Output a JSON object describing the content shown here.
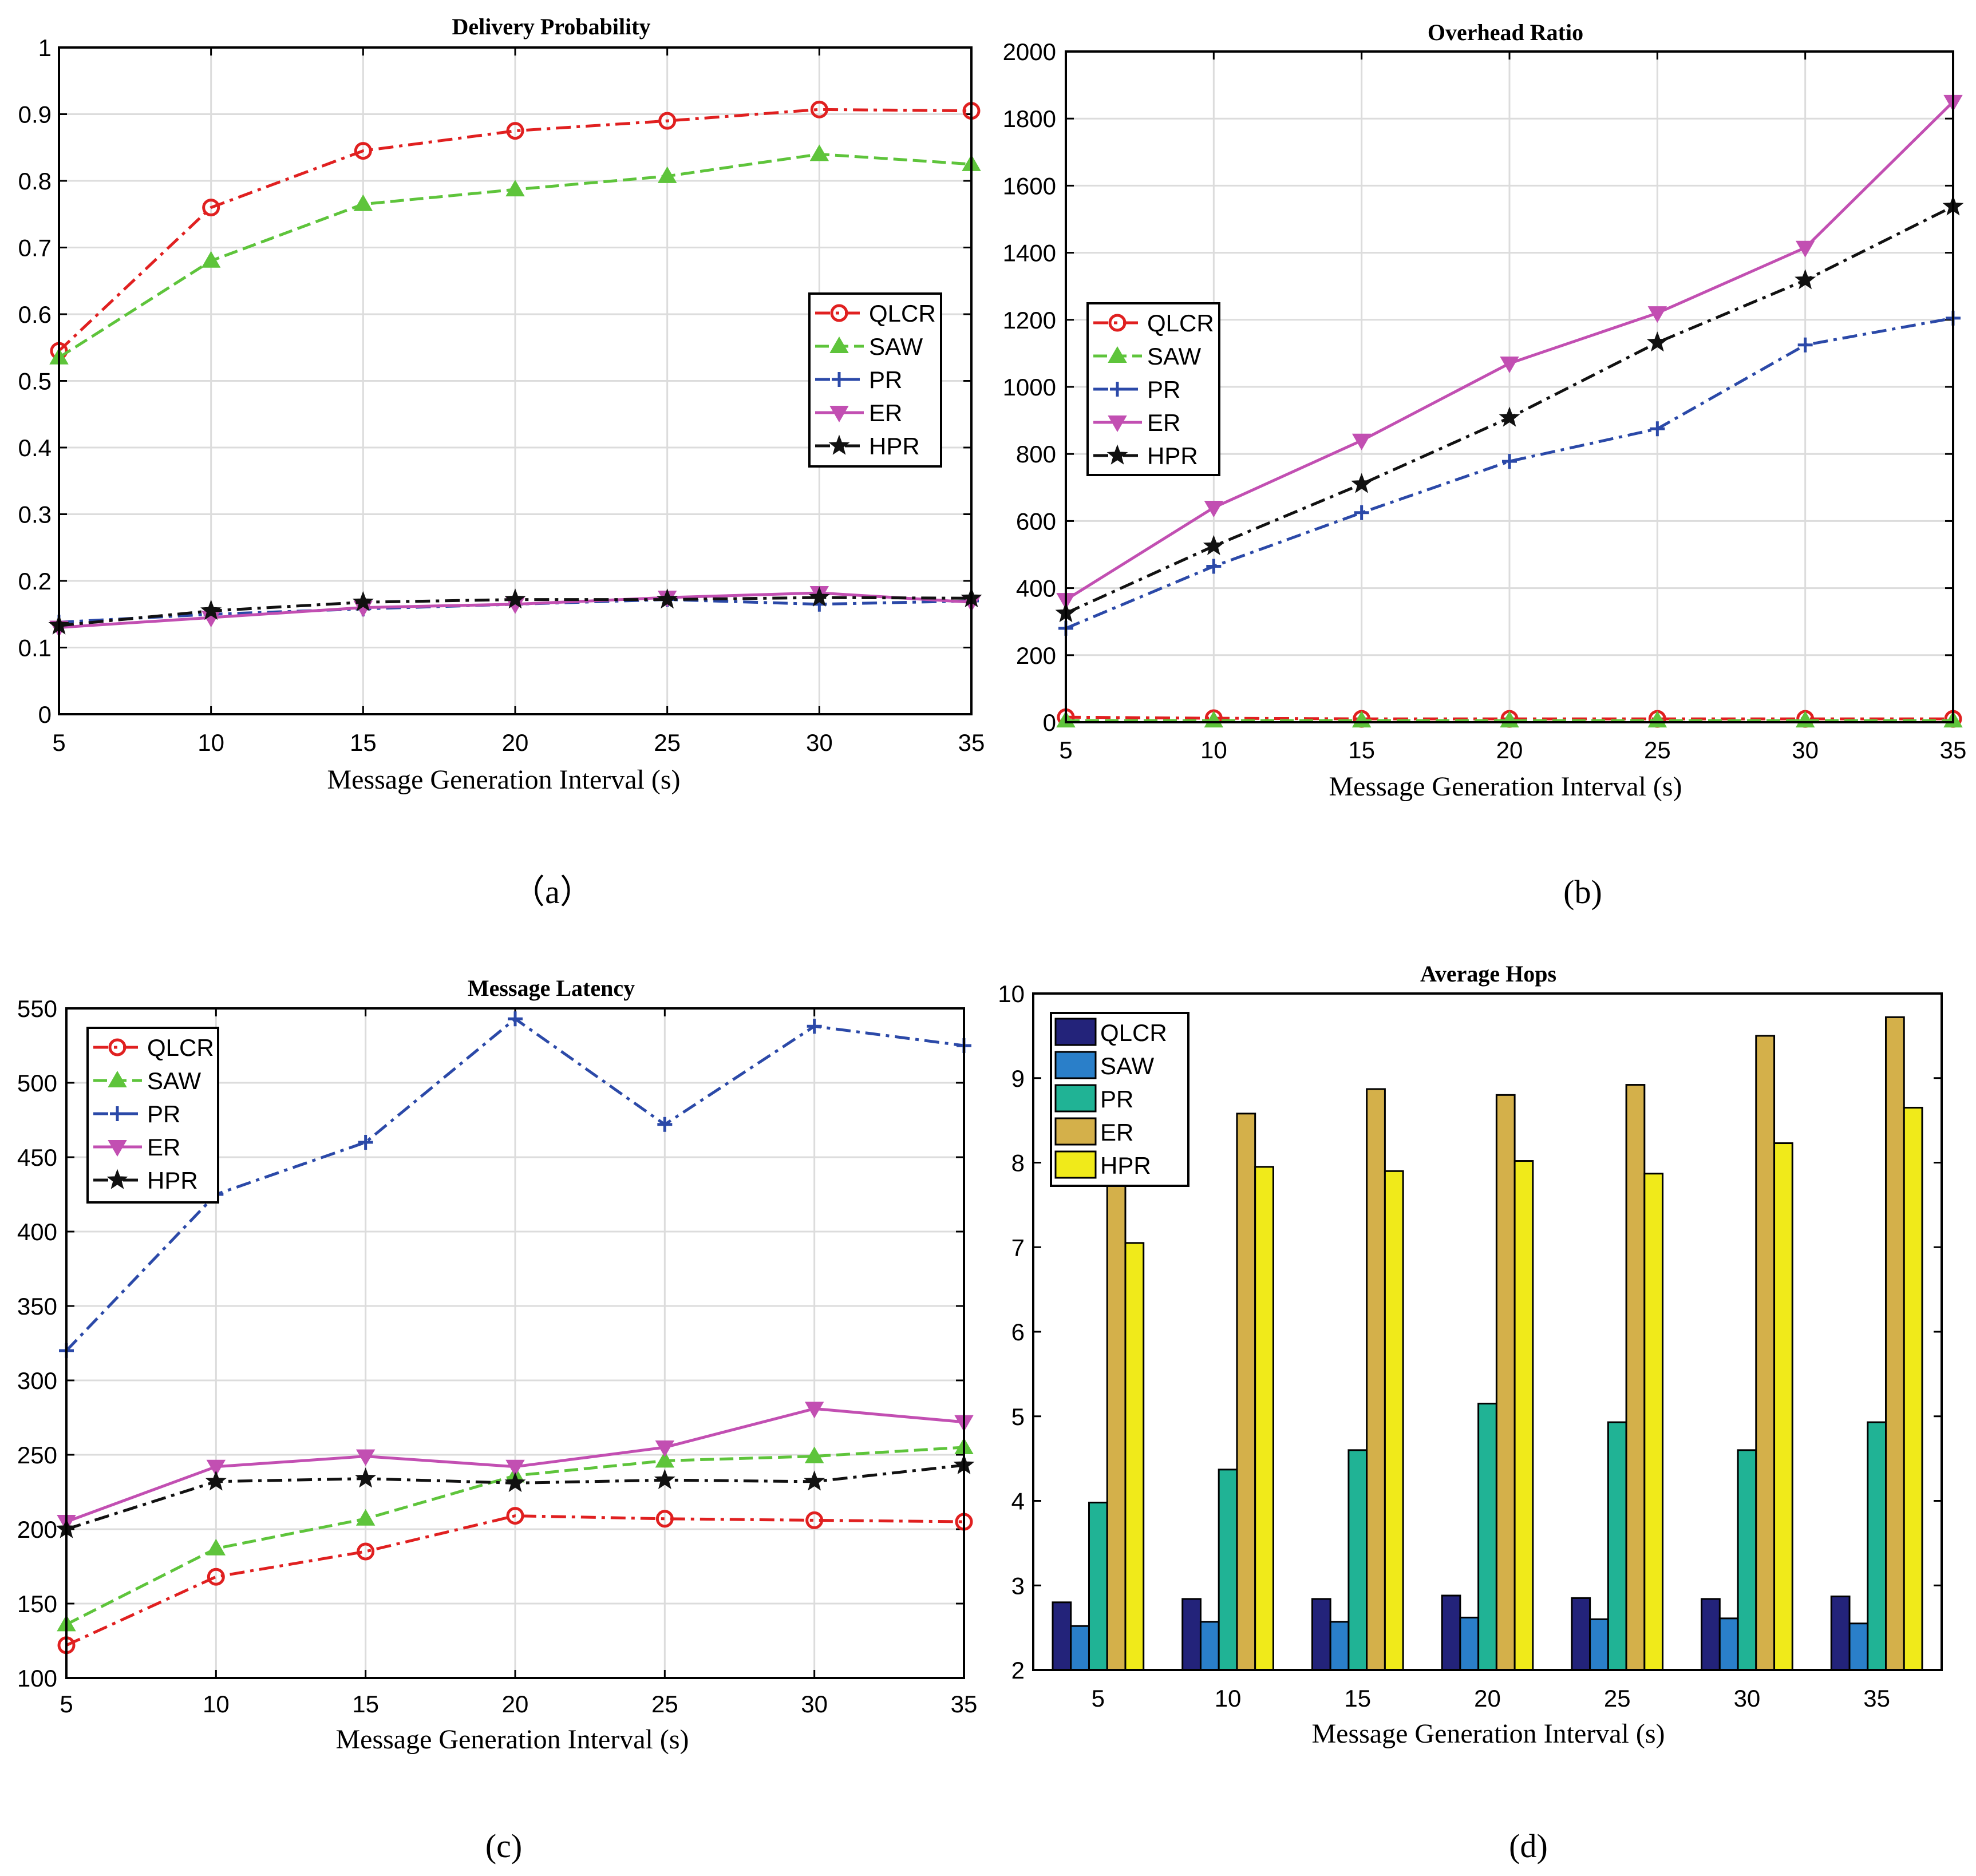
{
  "panel_labels": [
    "（a）",
    "(b)",
    "(c)",
    "(d)"
  ],
  "colors": {
    "QLCR": "#e02020",
    "SAW": "#5ec43b",
    "PR": "#2b49a8",
    "ER": "#c24fb2",
    "HPR": "#111111",
    "bar_QLCR": "#23237a",
    "bar_SAW": "#2a7fc9",
    "bar_PR": "#20b395",
    "bar_ER": "#d4b04a",
    "bar_HPR": "#f0ea1a"
  },
  "chart_data": [
    {
      "id": "a",
      "type": "line",
      "title": "Delivery Probability",
      "xlabel": "Message Generation Interval (s)",
      "ylabel": "",
      "x": [
        5,
        10,
        15,
        20,
        25,
        30,
        35
      ],
      "xticks": [
        "5",
        "10",
        "15",
        "20",
        "25",
        "30",
        "35"
      ],
      "ylim": [
        0,
        1
      ],
      "yticks": [
        "0",
        "0.1",
        "0.2",
        "0.3",
        "0.4",
        "0.5",
        "0.6",
        "0.7",
        "0.8",
        "0.9",
        "1"
      ],
      "legend_position": "right-middle",
      "series": [
        {
          "name": "QLCR",
          "values": [
            0.545,
            0.76,
            0.845,
            0.875,
            0.89,
            0.907,
            0.905
          ]
        },
        {
          "name": "SAW",
          "values": [
            0.535,
            0.68,
            0.765,
            0.787,
            0.807,
            0.84,
            0.825
          ]
        },
        {
          "name": "PR",
          "values": [
            0.138,
            0.15,
            0.158,
            0.165,
            0.172,
            0.165,
            0.17
          ]
        },
        {
          "name": "ER",
          "values": [
            0.13,
            0.145,
            0.16,
            0.165,
            0.175,
            0.182,
            0.168
          ]
        },
        {
          "name": "HPR",
          "values": [
            0.133,
            0.155,
            0.168,
            0.172,
            0.172,
            0.175,
            0.174
          ]
        }
      ]
    },
    {
      "id": "b",
      "type": "line",
      "title": "Overhead Ratio",
      "xlabel": "Message Generation Interval (s)",
      "ylabel": "",
      "x": [
        5,
        10,
        15,
        20,
        25,
        30,
        35
      ],
      "xticks": [
        "5",
        "10",
        "15",
        "20",
        "25",
        "30",
        "35"
      ],
      "ylim": [
        0,
        2000
      ],
      "yticks": [
        "0",
        "200",
        "400",
        "600",
        "800",
        "1000",
        "1200",
        "1400",
        "1600",
        "1800",
        "2000"
      ],
      "legend_position": "left-middle",
      "series": [
        {
          "name": "QLCR",
          "values": [
            15,
            12,
            10,
            10,
            10,
            10,
            10
          ]
        },
        {
          "name": "SAW",
          "values": [
            5,
            5,
            5,
            5,
            5,
            5,
            5
          ]
        },
        {
          "name": "PR",
          "values": [
            280,
            465,
            625,
            778,
            875,
            1125,
            1205
          ]
        },
        {
          "name": "ER",
          "values": [
            365,
            640,
            840,
            1070,
            1220,
            1415,
            1850
          ]
        },
        {
          "name": "HPR",
          "values": [
            325,
            525,
            710,
            908,
            1132,
            1318,
            1538
          ]
        }
      ]
    },
    {
      "id": "c",
      "type": "line",
      "title": "Message Latency",
      "xlabel": "Message Generation Interval (s)",
      "ylabel": "",
      "x": [
        5,
        10,
        15,
        20,
        25,
        30,
        35
      ],
      "xticks": [
        "5",
        "10",
        "15",
        "20",
        "25",
        "30",
        "35"
      ],
      "ylim": [
        100,
        550
      ],
      "yticks": [
        "100",
        "150",
        "200",
        "250",
        "300",
        "350",
        "400",
        "450",
        "500",
        "550"
      ],
      "legend_position": "top-left",
      "series": [
        {
          "name": "QLCR",
          "values": [
            122,
            168,
            185,
            209,
            207,
            206,
            205
          ]
        },
        {
          "name": "SAW",
          "values": [
            136,
            187,
            207,
            236,
            246,
            249,
            255
          ]
        },
        {
          "name": "PR",
          "values": [
            320,
            425,
            460,
            543,
            472,
            538,
            525
          ]
        },
        {
          "name": "ER",
          "values": [
            205,
            242,
            249,
            242,
            255,
            281,
            272
          ]
        },
        {
          "name": "HPR",
          "values": [
            200,
            232,
            234,
            231,
            233,
            232,
            243
          ]
        }
      ]
    },
    {
      "id": "d",
      "type": "bar",
      "title": "Average Hops",
      "xlabel": "Message Generation Interval (s)",
      "ylabel": "",
      "categories": [
        "5",
        "10",
        "15",
        "20",
        "25",
        "30",
        "35"
      ],
      "ylim": [
        2,
        10
      ],
      "yticks": [
        "2",
        "3",
        "4",
        "5",
        "6",
        "7",
        "8",
        "9",
        "10"
      ],
      "legend_position": "top-left",
      "series": [
        {
          "name": "QLCR",
          "values": [
            2.8,
            2.84,
            2.84,
            2.88,
            2.85,
            2.84,
            2.87
          ]
        },
        {
          "name": "SAW",
          "values": [
            2.52,
            2.57,
            2.57,
            2.62,
            2.6,
            2.61,
            2.55
          ]
        },
        {
          "name": "PR",
          "values": [
            3.98,
            4.37,
            4.6,
            5.15,
            4.93,
            4.6,
            4.93
          ]
        },
        {
          "name": "ER",
          "values": [
            7.95,
            8.58,
            8.87,
            8.8,
            8.92,
            9.5,
            9.72
          ]
        },
        {
          "name": "HPR",
          "values": [
            7.05,
            7.95,
            7.9,
            8.02,
            7.87,
            8.23,
            8.65
          ]
        }
      ]
    }
  ]
}
